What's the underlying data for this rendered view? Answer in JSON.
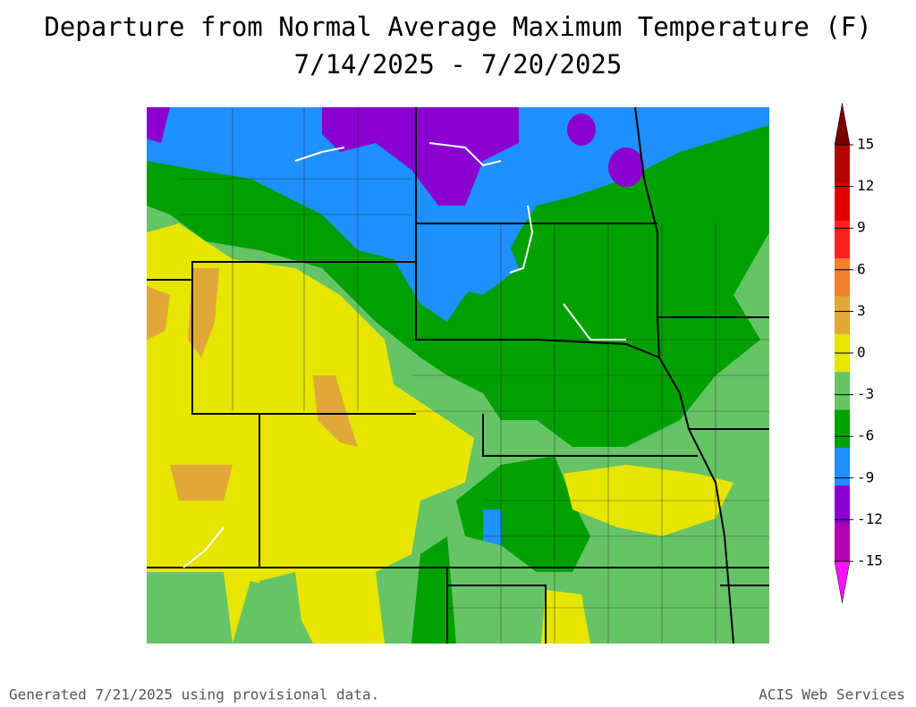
{
  "title": "Departure from Normal Average Maximum Temperature (F)",
  "subtitle": "7/14/2025 - 7/20/2025",
  "legend": {
    "ticks": [
      15,
      12,
      9,
      6,
      3,
      0,
      -3,
      -6,
      -9,
      -12,
      -15
    ],
    "colors": [
      "#7a0000",
      "#b40000",
      "#e00000",
      "#ff2020",
      "#f08030",
      "#e0a838",
      "#e6e600",
      "#66c466",
      "#00a000",
      "#1e90ff",
      "#8a00d0",
      "#b000b0",
      "#ff10ff"
    ]
  },
  "footer": {
    "left": "Generated 7/21/2025 using provisional data.",
    "right": "ACIS Web Services"
  }
}
